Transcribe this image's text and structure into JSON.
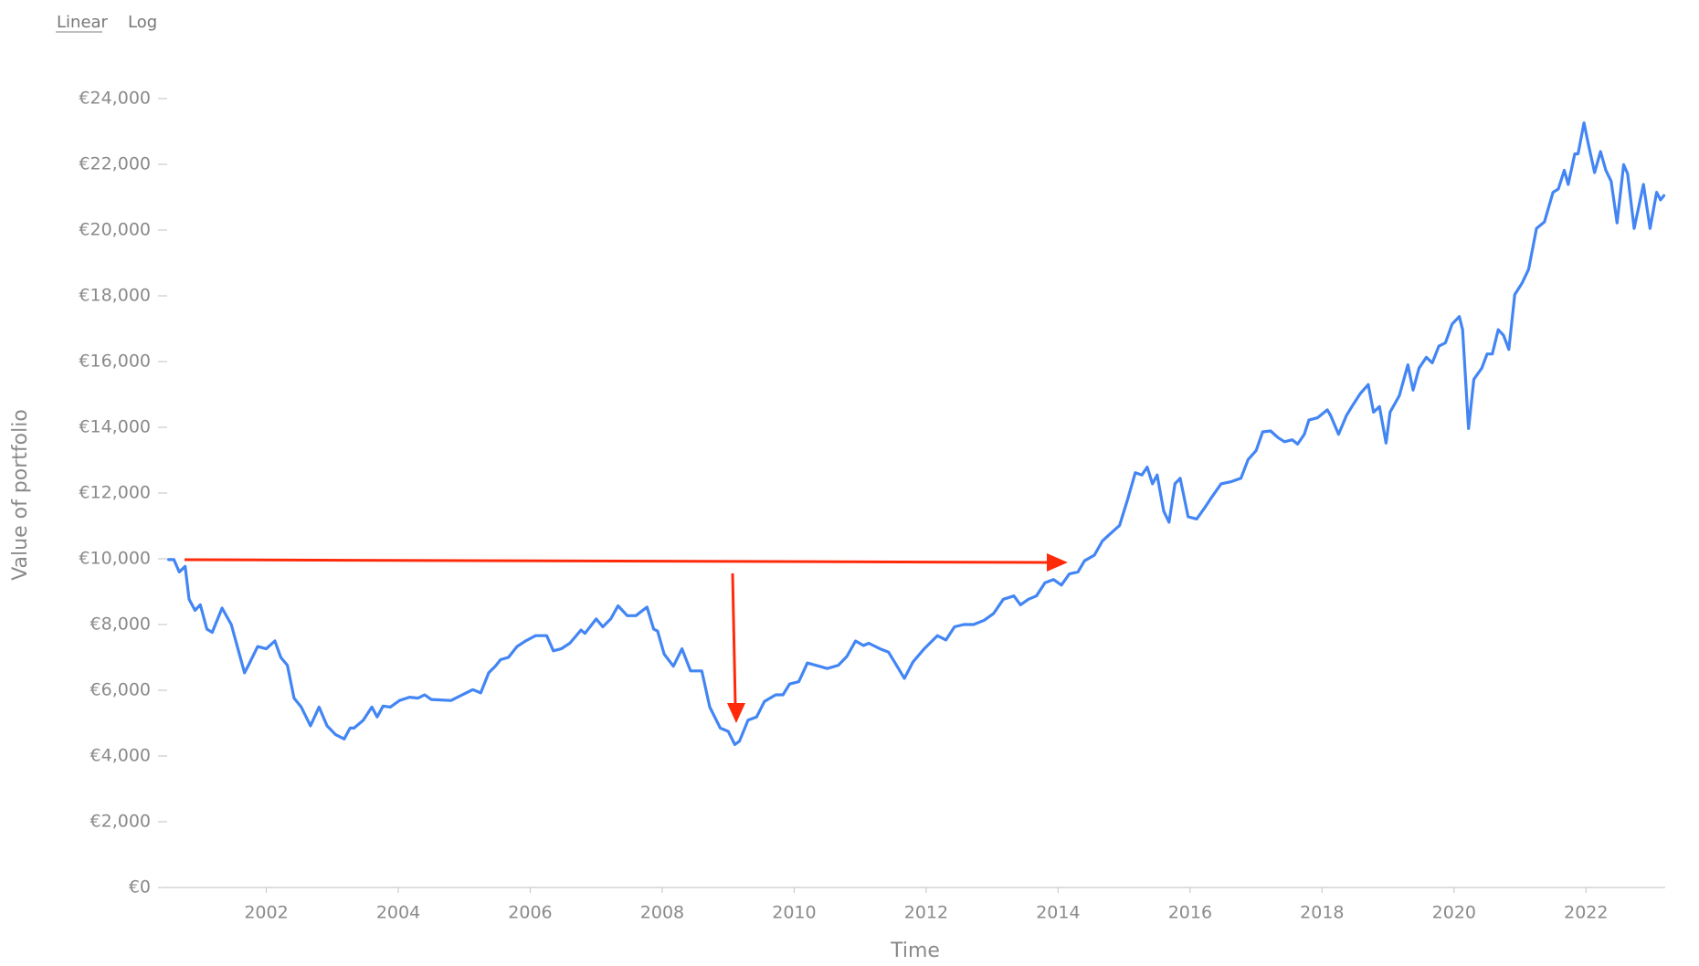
{
  "controls": {
    "linear": "Linear",
    "log": "Log"
  },
  "chart_data": {
    "type": "line",
    "xlabel": "Time",
    "ylabel": "Value of portfolio",
    "xlim": [
      2000.47,
      2023.2
    ],
    "xticks": [
      2002,
      2004,
      2006,
      2008,
      2010,
      2012,
      2014,
      2016,
      2018,
      2020,
      2022
    ],
    "ylim": [
      0,
      24000
    ],
    "yticks": [
      {
        "value": 0,
        "label": "€0"
      },
      {
        "value": 2000,
        "label": "€2,000"
      },
      {
        "value": 4000,
        "label": "€4,000"
      },
      {
        "value": 6000,
        "label": "€6,000"
      },
      {
        "value": 8000,
        "label": "€8,000"
      },
      {
        "value": 10000,
        "label": "€10,000"
      },
      {
        "value": 12000,
        "label": "€12,000"
      },
      {
        "value": 14000,
        "label": "€14,000"
      },
      {
        "value": 16000,
        "label": "€16,000"
      },
      {
        "value": 18000,
        "label": "€18,000"
      },
      {
        "value": 20000,
        "label": "€20,000"
      },
      {
        "value": 22000,
        "label": "€22,000"
      },
      {
        "value": 24000,
        "label": "€24,000"
      }
    ],
    "log_scale": false,
    "series": [
      {
        "name": "Value of portfolio",
        "color": "#4285f4",
        "x": [
          2000.52,
          2000.6,
          2000.68,
          2000.77,
          2000.83,
          2000.92,
          2001.0,
          2001.1,
          2001.18,
          2001.33,
          2001.47,
          2001.67,
          2001.73,
          2001.87,
          2002.0,
          2002.13,
          2002.22,
          2002.32,
          2002.42,
          2002.53,
          2002.67,
          2002.8,
          2002.92,
          2003.05,
          2003.18,
          2003.27,
          2003.33,
          2003.47,
          2003.6,
          2003.68,
          2003.77,
          2003.88,
          2004.02,
          2004.17,
          2004.3,
          2004.4,
          2004.5,
          2004.8,
          2004.97,
          2005.13,
          2005.25,
          2005.37,
          2005.47,
          2005.55,
          2005.67,
          2005.8,
          2005.93,
          2006.08,
          2006.25,
          2006.35,
          2006.47,
          2006.6,
          2006.77,
          2006.83,
          2007.0,
          2007.1,
          2007.22,
          2007.33,
          2007.47,
          2007.6,
          2007.77,
          2007.87,
          2007.93,
          2008.03,
          2008.17,
          2008.3,
          2008.43,
          2008.6,
          2008.72,
          2008.88,
          2009.0,
          2009.1,
          2009.17,
          2009.3,
          2009.43,
          2009.55,
          2009.72,
          2009.83,
          2009.93,
          2010.07,
          2010.2,
          2010.38,
          2010.5,
          2010.67,
          2010.8,
          2010.93,
          2011.05,
          2011.13,
          2011.3,
          2011.43,
          2011.55,
          2011.67,
          2011.8,
          2011.97,
          2012.17,
          2012.3,
          2012.43,
          2012.57,
          2012.72,
          2012.88,
          2013.02,
          2013.17,
          2013.33,
          2013.43,
          2013.55,
          2013.67,
          2013.8,
          2013.93,
          2014.05,
          2014.17,
          2014.3,
          2014.4,
          2014.55,
          2014.67,
          2014.8,
          2014.93,
          2015.05,
          2015.17,
          2015.27,
          2015.35,
          2015.43,
          2015.5,
          2015.6,
          2015.68,
          2015.77,
          2015.85,
          2015.97,
          2016.1,
          2016.22,
          2016.33,
          2016.47,
          2016.63,
          2016.77,
          2016.88,
          2017.0,
          2017.1,
          2017.22,
          2017.33,
          2017.43,
          2017.55,
          2017.63,
          2017.73,
          2017.8,
          2017.93,
          2018.08,
          2018.13,
          2018.25,
          2018.37,
          2018.47,
          2018.58,
          2018.7,
          2018.78,
          2018.87,
          2018.97,
          2019.03,
          2019.17,
          2019.3,
          2019.38,
          2019.47,
          2019.58,
          2019.67,
          2019.77,
          2019.87,
          2019.97,
          2020.08,
          2020.13,
          2020.22,
          2020.3,
          2020.42,
          2020.5,
          2020.58,
          2020.67,
          2020.75,
          2020.83,
          2020.92,
          2021.03,
          2021.13,
          2021.25,
          2021.37,
          2021.5,
          2021.58,
          2021.67,
          2021.73,
          2021.83,
          2021.88,
          2021.97,
          2022.03,
          2022.13,
          2022.22,
          2022.3,
          2022.38,
          2022.47,
          2022.57,
          2022.63,
          2022.73,
          2022.87,
          2022.97,
          2023.07,
          2023.13,
          2023.18
        ],
        "values": [
          9975,
          9975,
          9600,
          9770,
          8770,
          8430,
          8600,
          7860,
          7760,
          8500,
          8000,
          6530,
          6760,
          7330,
          7260,
          7500,
          7000,
          6760,
          5760,
          5490,
          4920,
          5490,
          4920,
          4650,
          4520,
          4850,
          4850,
          5090,
          5490,
          5190,
          5520,
          5490,
          5690,
          5790,
          5760,
          5860,
          5720,
          5690,
          5860,
          6020,
          5920,
          6530,
          6730,
          6930,
          7000,
          7330,
          7500,
          7660,
          7660,
          7200,
          7260,
          7430,
          7830,
          7730,
          8170,
          7930,
          8170,
          8570,
          8270,
          8270,
          8530,
          7860,
          7800,
          7100,
          6730,
          7260,
          6590,
          6590,
          5490,
          4850,
          4750,
          4350,
          4450,
          5090,
          5190,
          5660,
          5860,
          5860,
          6190,
          6260,
          6830,
          6730,
          6660,
          6760,
          7030,
          7500,
          7360,
          7430,
          7260,
          7160,
          6760,
          6360,
          6860,
          7260,
          7660,
          7530,
          7930,
          8000,
          8000,
          8130,
          8330,
          8770,
          8870,
          8600,
          8770,
          8870,
          9270,
          9370,
          9200,
          9540,
          9600,
          9940,
          10110,
          10540,
          10780,
          11010,
          11780,
          12620,
          12550,
          12790,
          12280,
          12550,
          11450,
          11110,
          12280,
          12450,
          11280,
          11210,
          11550,
          11880,
          12280,
          12350,
          12450,
          13020,
          13290,
          13860,
          13890,
          13690,
          13560,
          13620,
          13490,
          13790,
          14220,
          14290,
          14530,
          14360,
          13790,
          14360,
          14690,
          15030,
          15300,
          14460,
          14630,
          13520,
          14460,
          14960,
          15900,
          15130,
          15800,
          16130,
          15960,
          16470,
          16570,
          17140,
          17370,
          16970,
          13960,
          15460,
          15800,
          16230,
          16230,
          16970,
          16800,
          16370,
          18040,
          18380,
          18810,
          20050,
          20250,
          21150,
          21250,
          21820,
          21390,
          22320,
          22320,
          23260,
          22660,
          21750,
          22390,
          21820,
          21490,
          20220,
          21990,
          21720,
          20050,
          21390,
          20050,
          21150,
          20920,
          21050
        ]
      }
    ]
  }
}
